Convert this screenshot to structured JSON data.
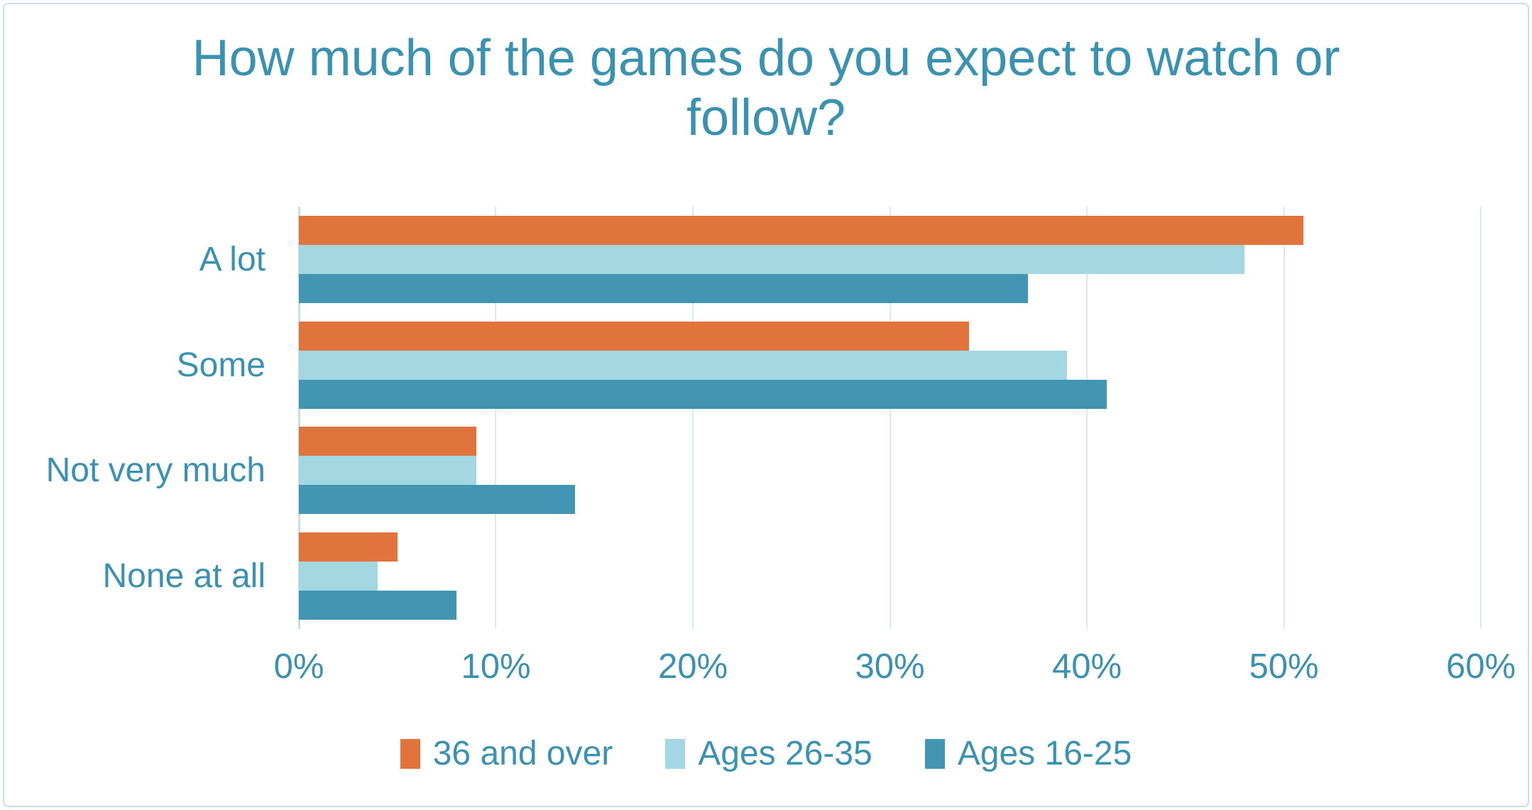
{
  "chart_data": {
    "type": "bar",
    "orientation": "horizontal",
    "title": "How much of the games do you expect to watch or follow?",
    "xlabel": "",
    "ylabel": "",
    "categories": [
      "A lot",
      "Some",
      "Not very much",
      "None at all"
    ],
    "series": [
      {
        "name": "36 and over",
        "color": "#e1743d",
        "values": [
          51,
          34,
          9,
          5
        ]
      },
      {
        "name": "Ages 26-35",
        "color": "#a3d8e3",
        "values": [
          48,
          39,
          9,
          4
        ]
      },
      {
        "name": "Ages 16-25",
        "color": "#4296b4",
        "values": [
          37,
          41,
          14,
          8
        ]
      }
    ],
    "x_axis": {
      "min": 0,
      "max": 60,
      "tick_labels": [
        "0%",
        "10%",
        "20%",
        "30%",
        "40%",
        "50%",
        "60%"
      ],
      "grid": true
    },
    "legend": {
      "position": "bottom"
    },
    "colors": {
      "text": "#3a92b1",
      "gridline": "#dce9f2",
      "axis_line": "#c5deea",
      "frame_border": "#c9dce9",
      "background": "#ffffff"
    }
  }
}
